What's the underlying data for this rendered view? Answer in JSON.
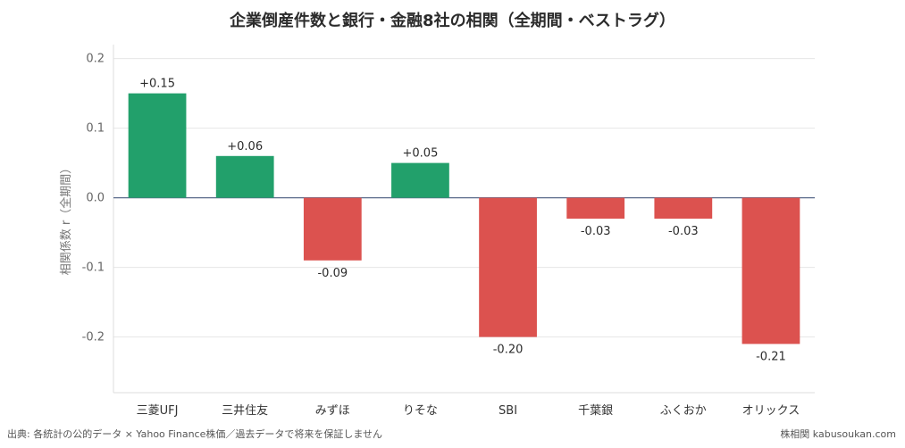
{
  "chart_data": {
    "type": "bar",
    "title": "企業倒産件数と銀行・金融8社の相関（全期間・ベストラグ）",
    "ylabel": "相関係数 r（全期間）",
    "xlabel": "",
    "categories": [
      "三菱UFJ",
      "三井住友",
      "みずほ",
      "りそな",
      "SBI",
      "千葉銀",
      "ふくおか",
      "オリックス"
    ],
    "values": [
      0.15,
      0.06,
      -0.09,
      0.05,
      -0.2,
      -0.03,
      -0.03,
      -0.21
    ],
    "value_labels": [
      "+0.15",
      "+0.06",
      "-0.09",
      "+0.05",
      "-0.20",
      "-0.03",
      "-0.03",
      "-0.21"
    ],
    "ylim": [
      -0.28,
      0.22
    ],
    "yticks": [
      0.2,
      0.1,
      0.0,
      -0.1,
      -0.2
    ],
    "ytick_labels": [
      "0.2",
      "0.1",
      "0.0",
      "-0.1",
      "-0.2"
    ],
    "grid": true,
    "colors": {
      "positive": "#22a06b",
      "negative": "#dc524f",
      "zero_line": "#5a6a8a",
      "grid": "#e6e6e6"
    }
  },
  "footer": {
    "source": "出典: 各統計の公的データ × Yahoo Finance株価／過去データで将来を保証しません",
    "brand": "株相関 kabusoukan.com"
  }
}
